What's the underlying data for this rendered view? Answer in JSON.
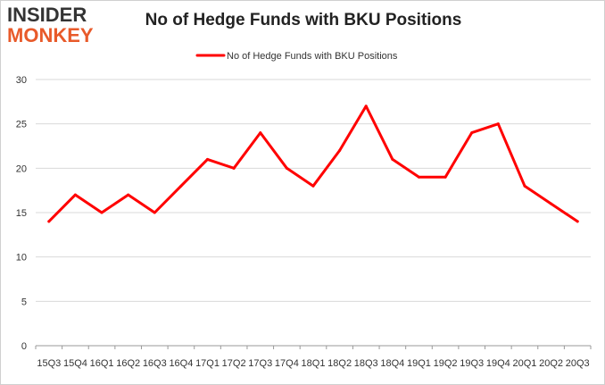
{
  "logo": {
    "top": "INSIDER",
    "bottom": "MONKEY"
  },
  "chart_data": {
    "type": "line",
    "title": "No of Hedge Funds with BKU Positions",
    "categories": [
      "15Q3",
      "15Q4",
      "16Q1",
      "16Q2",
      "16Q3",
      "16Q4",
      "17Q1",
      "17Q2",
      "17Q3",
      "17Q4",
      "18Q1",
      "18Q2",
      "18Q3",
      "18Q4",
      "19Q1",
      "19Q2",
      "19Q3",
      "19Q4",
      "20Q1",
      "20Q2",
      "20Q3"
    ],
    "series": [
      {
        "name": "No of Hedge Funds with BKU Positions",
        "values": [
          14,
          17,
          15,
          17,
          15,
          18,
          21,
          20,
          24,
          20,
          18,
          22,
          27,
          21,
          19,
          19,
          24,
          25,
          18,
          16,
          14
        ],
        "color": "#ff0000"
      }
    ],
    "yticks": [
      "0",
      "5",
      "10",
      "15",
      "20",
      "25",
      "30"
    ],
    "ylim": [
      0,
      30
    ],
    "grid": true,
    "legend": "top-center"
  }
}
